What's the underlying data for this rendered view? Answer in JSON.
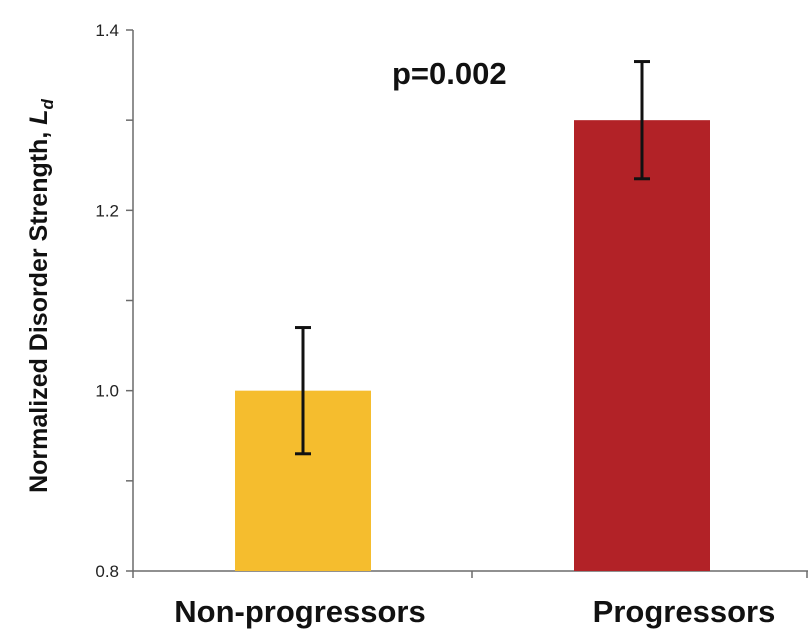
{
  "chart_data": {
    "type": "bar",
    "categories": [
      "Non-progressors",
      "Progressors"
    ],
    "values": [
      1.0,
      1.3
    ],
    "errors": [
      0.07,
      0.065
    ],
    "colors": [
      "#F5BD2E",
      "#B22227"
    ],
    "ylabel_main": "Normalized Disorder Strength, ",
    "ylabel_symbol": "L",
    "ylabel_subscript": "d",
    "ylim": [
      0.8,
      1.4
    ],
    "yticks": [
      0.8,
      0.9,
      1.0,
      1.1,
      1.2,
      1.3,
      1.4
    ],
    "ytick_labels": [
      "0.8",
      "",
      "1.0",
      "",
      "1.2",
      "",
      "1.4"
    ],
    "annotation": "p=0.002",
    "grid": false,
    "legend": "none"
  }
}
